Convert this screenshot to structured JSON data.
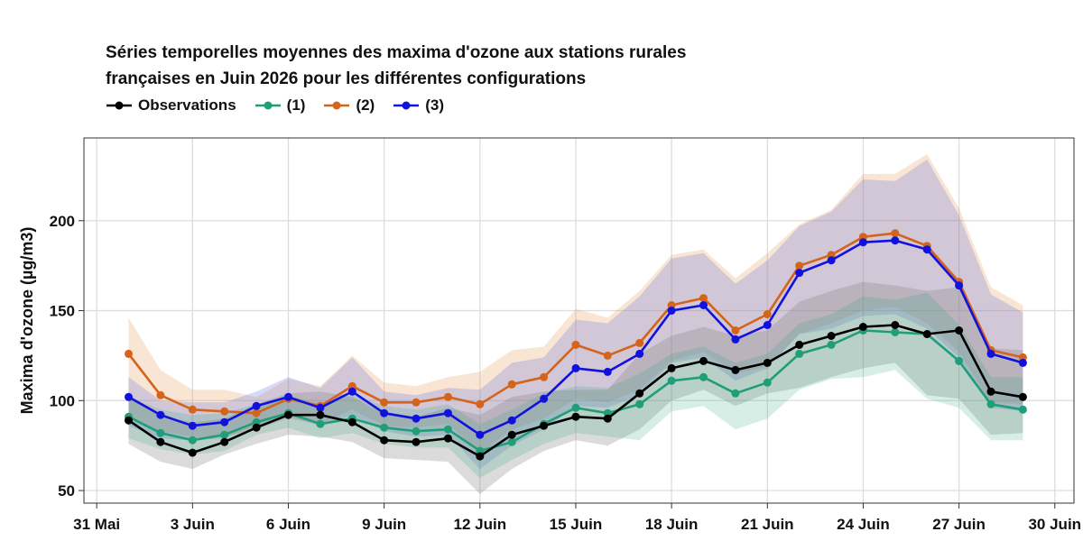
{
  "chart_data": {
    "type": "line",
    "title_lines": [
      "Séries temporelles moyennes des maxima d'ozone aux stations rurales",
      "françaises en Juin 2026 pour les différentes configurations"
    ],
    "xlabel": "",
    "ylabel": "Maxima d'ozone (µg/m3)",
    "x_tick_labels": [
      "31 Mai",
      "3 Juin",
      "6 Juin",
      "9 Juin",
      "12 Juin",
      "15 Juin",
      "18 Juin",
      "21 Juin",
      "24 Juin",
      "27 Juin",
      "30 Juin"
    ],
    "x_ticks": [
      0,
      3,
      6,
      9,
      12,
      15,
      18,
      21,
      24,
      27,
      30
    ],
    "y_ticks": [
      50,
      100,
      150,
      200
    ],
    "xlim": [
      -0.4,
      30.6
    ],
    "ylim": [
      43,
      246
    ],
    "x": [
      1,
      2,
      3,
      4,
      5,
      6,
      7,
      8,
      9,
      10,
      11,
      12,
      13,
      14,
      15,
      16,
      17,
      18,
      19,
      20,
      21,
      22,
      23,
      24,
      25,
      26,
      27,
      28,
      29
    ],
    "grid": true,
    "legend_position": "top-left",
    "series": [
      {
        "name": "Observations",
        "color": "#000000",
        "band_color": "#7f7f7f",
        "values": [
          89,
          77,
          71,
          77,
          85,
          92,
          92,
          88,
          78,
          77,
          79,
          69,
          81,
          86,
          91,
          90,
          104,
          118,
          122,
          117,
          121,
          131,
          136,
          141,
          142,
          137,
          139,
          105,
          102
        ],
        "lower": [
          76,
          66,
          62,
          70,
          76,
          81,
          80,
          77,
          68,
          67,
          66,
          48,
          62,
          72,
          78,
          75,
          84,
          100,
          106,
          97,
          104,
          107,
          113,
          118,
          121,
          103,
          101,
          81,
          82
        ],
        "upper": [
          103,
          91,
          88,
          90,
          98,
          104,
          105,
          102,
          93,
          91,
          96,
          92,
          102,
          105,
          106,
          106,
          126,
          136,
          141,
          136,
          139,
          155,
          161,
          166,
          164,
          161,
          163,
          129,
          128
        ]
      },
      {
        "name": "(1)",
        "color": "#1f9e78",
        "band_color": "#1f9e78",
        "values": [
          91,
          82,
          78,
          81,
          88,
          93,
          87,
          90,
          85,
          83,
          84,
          72,
          77,
          87,
          96,
          93,
          98,
          111,
          113,
          104,
          110,
          126,
          131,
          139,
          138,
          137,
          122,
          98,
          95
        ],
        "lower": [
          79,
          73,
          70,
          72,
          81,
          85,
          79,
          82,
          76,
          74,
          74,
          57,
          67,
          76,
          82,
          80,
          78,
          94,
          97,
          84,
          90,
          106,
          112,
          113,
          117,
          101,
          96,
          78,
          78
        ],
        "upper": [
          102,
          95,
          92,
          93,
          98,
          103,
          98,
          103,
          97,
          95,
          98,
          87,
          95,
          104,
          108,
          107,
          115,
          126,
          130,
          121,
          126,
          143,
          148,
          158,
          156,
          160,
          142,
          113,
          113
        ]
      },
      {
        "name": "(2)",
        "color": "#d4641c",
        "band_color": "#e8964e",
        "values": [
          126,
          103,
          95,
          94,
          93,
          101,
          97,
          108,
          99,
          99,
          102,
          98,
          109,
          113,
          131,
          125,
          132,
          153,
          157,
          139,
          148,
          175,
          181,
          191,
          193,
          186,
          166,
          128,
          124
        ],
        "lower": [
          91,
          83,
          80,
          80,
          84,
          90,
          87,
          95,
          86,
          85,
          87,
          71,
          84,
          90,
          101,
          99,
          106,
          122,
          127,
          115,
          119,
          137,
          143,
          150,
          152,
          143,
          127,
          99,
          98
        ],
        "upper": [
          146,
          117,
          106,
          106,
          102,
          112,
          108,
          125,
          110,
          108,
          113,
          116,
          128,
          130,
          151,
          146,
          161,
          181,
          184,
          168,
          182,
          198,
          206,
          226,
          226,
          237,
          207,
          163,
          153
        ]
      },
      {
        "name": "(3)",
        "color": "#1111dd",
        "band_color": "#6a7ae0",
        "values": [
          102,
          92,
          86,
          88,
          97,
          102,
          96,
          105,
          93,
          90,
          93,
          81,
          89,
          101,
          118,
          116,
          126,
          150,
          153,
          134,
          142,
          171,
          178,
          188,
          189,
          184,
          164,
          126,
          121
        ],
        "lower": [
          86,
          79,
          78,
          79,
          86,
          91,
          86,
          92,
          83,
          80,
          81,
          62,
          75,
          84,
          97,
          96,
          103,
          121,
          124,
          111,
          118,
          137,
          140,
          147,
          148,
          140,
          124,
          96,
          94
        ],
        "upper": [
          113,
          100,
          99,
          99,
          105,
          113,
          107,
          124,
          105,
          103,
          107,
          106,
          121,
          124,
          145,
          143,
          158,
          179,
          182,
          165,
          178,
          197,
          205,
          223,
          222,
          234,
          203,
          159,
          149
        ]
      }
    ]
  }
}
